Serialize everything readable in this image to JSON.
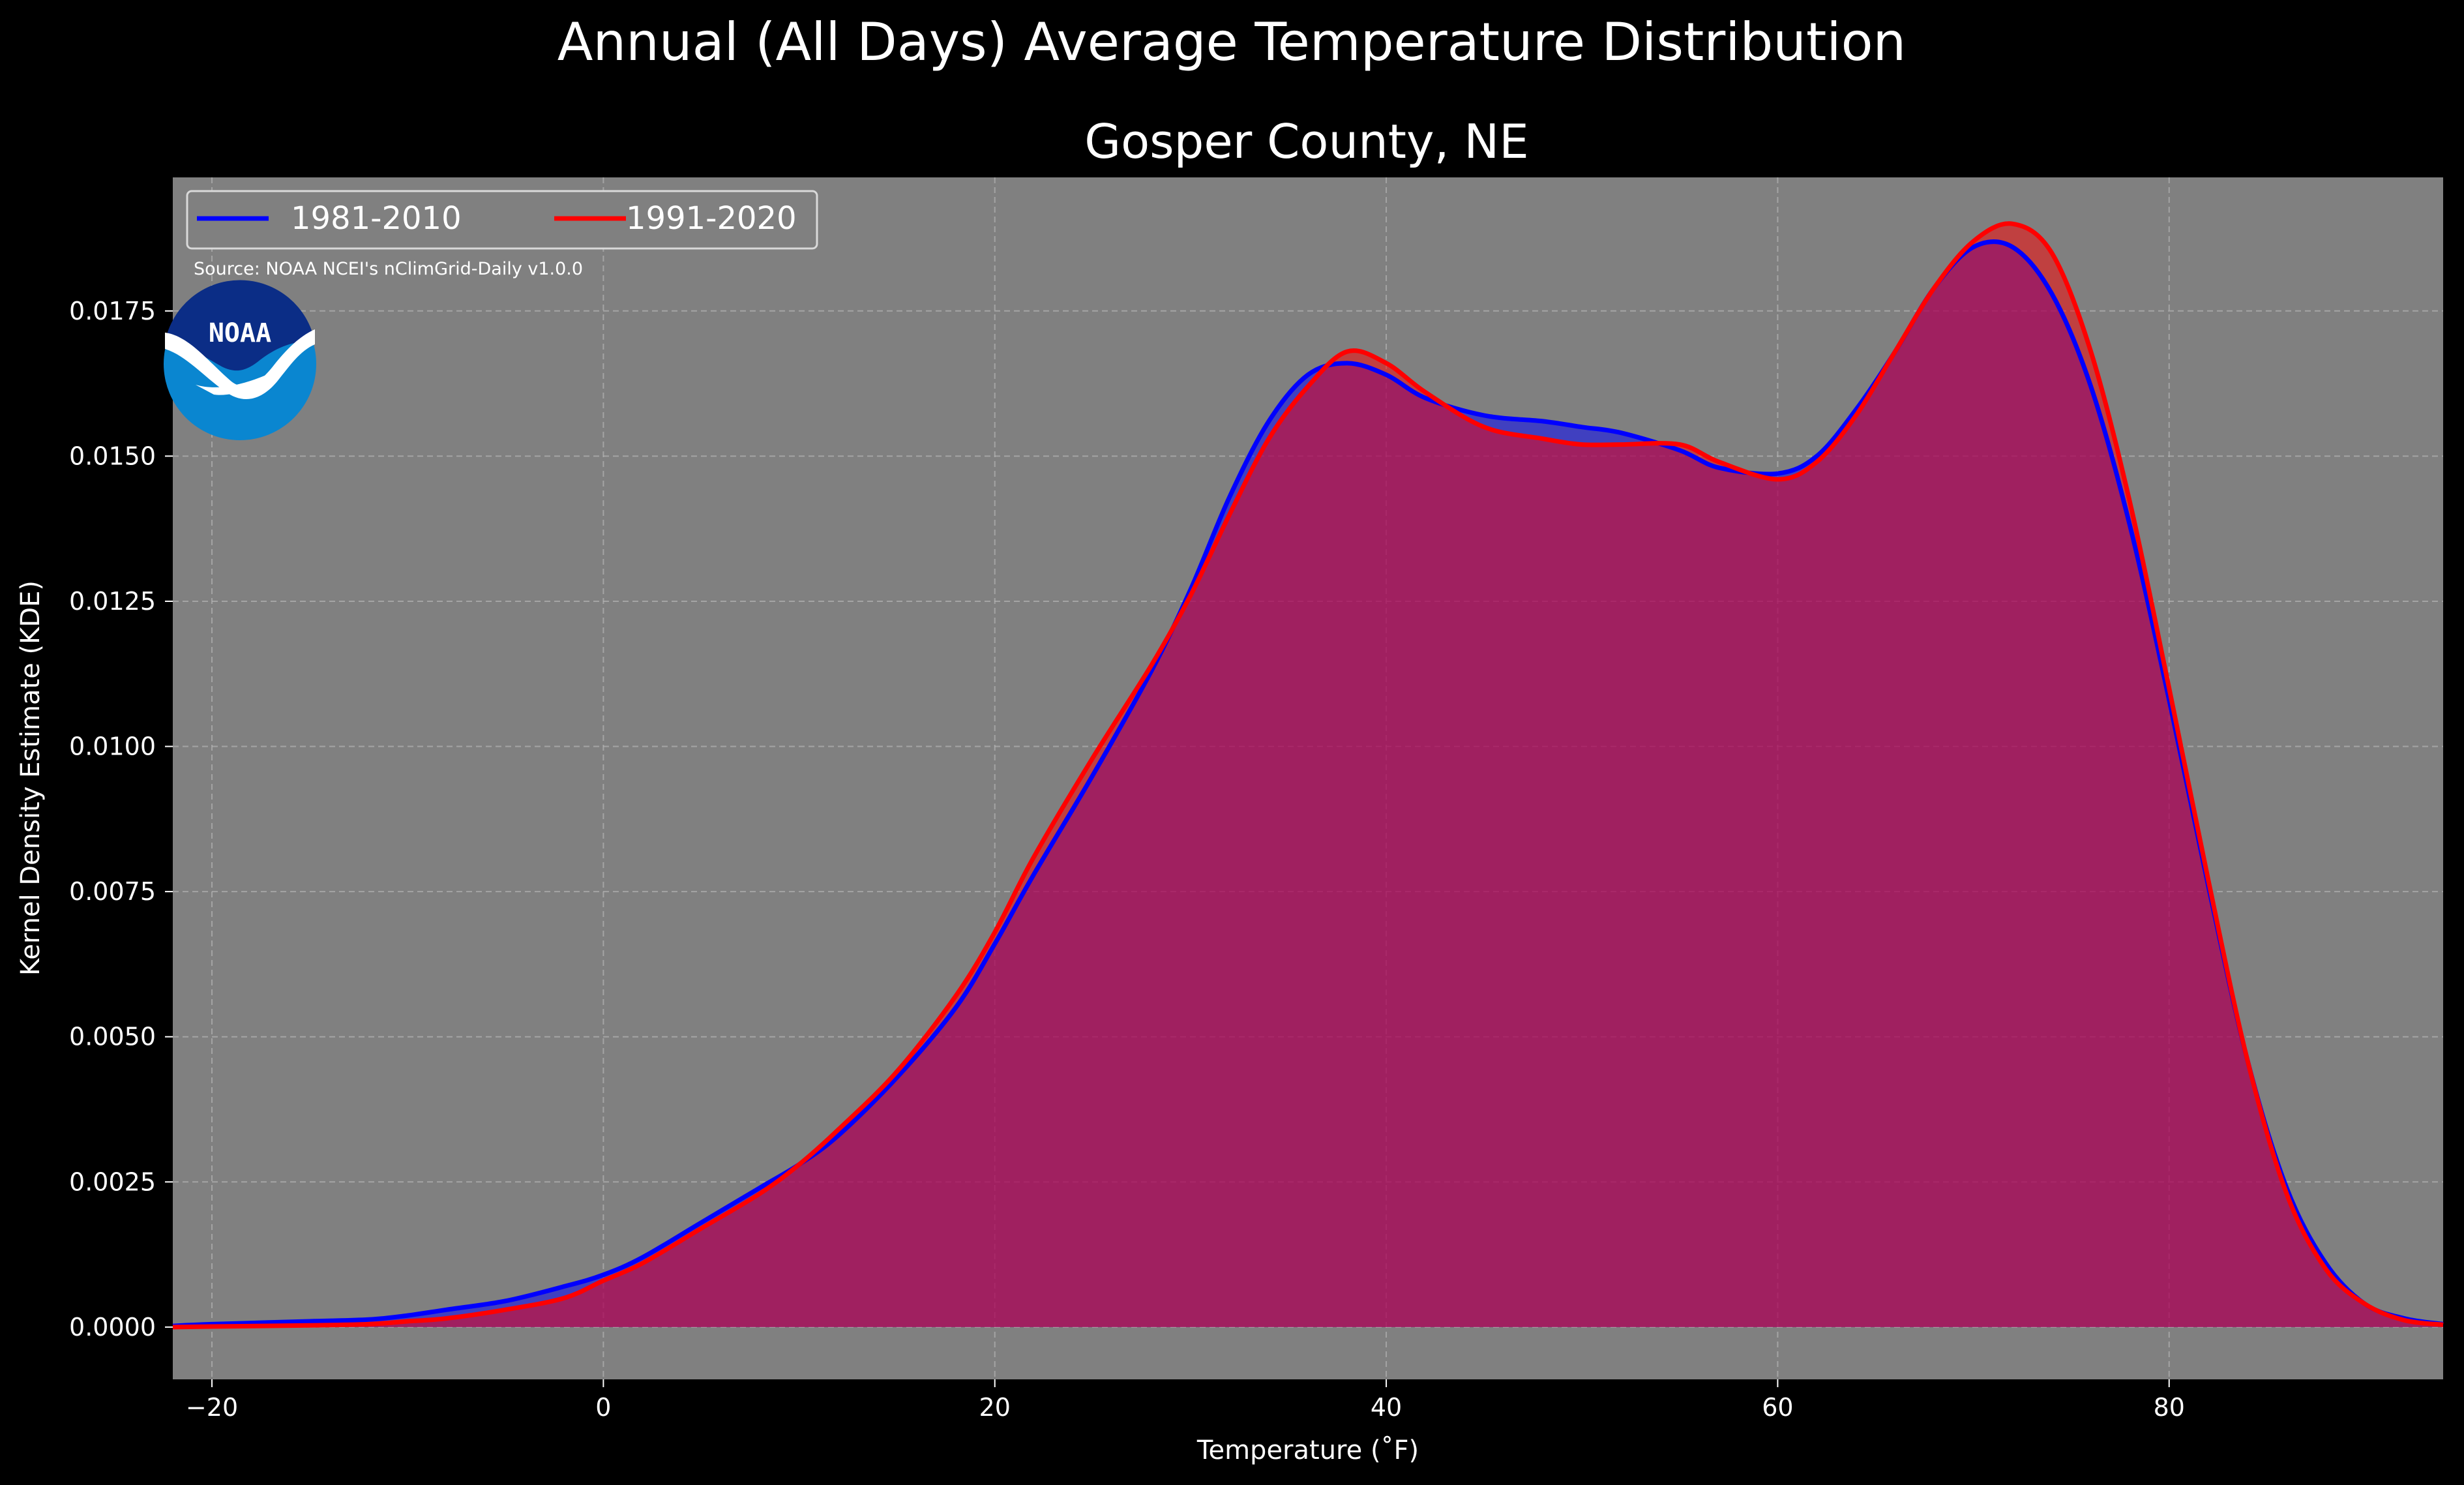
{
  "suptitle": "Annual (All Days) Average Temperature Distribution",
  "title": "Gosper County, NE",
  "source": "Source: NOAA NCEI's nClimGrid-Daily v1.0.0",
  "logo_text": "NOAA",
  "chart_data": {
    "type": "area",
    "xlabel": "Temperature (˚F)",
    "ylabel": "Kernel Density Estimate (KDE)",
    "xlim": [
      -22,
      94
    ],
    "ylim": [
      -0.0009,
      0.0198
    ],
    "x_ticks": [
      -20,
      0,
      20,
      40,
      60,
      80
    ],
    "y_ticks": [
      0.0,
      0.0025,
      0.005,
      0.0075,
      0.01,
      0.0125,
      0.015,
      0.0175
    ],
    "x_tick_labels": [
      "−20",
      "0",
      "20",
      "40",
      "60",
      "80"
    ],
    "y_tick_labels": [
      "0.0000",
      "0.0025",
      "0.0050",
      "0.0075",
      "0.0100",
      "0.0125",
      "0.0150",
      "0.0175"
    ],
    "grid": true,
    "legend_position": "top-left",
    "plot_background": "#808080",
    "series": [
      {
        "name": "1981-2010",
        "color": "#0000ff",
        "fill": "#0000ff",
        "points": [
          [
            -22,
            2e-05
          ],
          [
            -20,
            5e-05
          ],
          [
            -15,
            0.0001
          ],
          [
            -12,
            0.00013
          ],
          [
            -10,
            0.0002
          ],
          [
            -8,
            0.0003
          ],
          [
            -5,
            0.00045
          ],
          [
            -2,
            0.0007
          ],
          [
            0,
            0.0009
          ],
          [
            2,
            0.0012
          ],
          [
            5,
            0.0018
          ],
          [
            8,
            0.0024
          ],
          [
            10,
            0.0028
          ],
          [
            12,
            0.0033
          ],
          [
            15,
            0.0043
          ],
          [
            18,
            0.0055
          ],
          [
            20,
            0.0066
          ],
          [
            22,
            0.0078
          ],
          [
            25,
            0.0095
          ],
          [
            28,
            0.0113
          ],
          [
            30,
            0.0127
          ],
          [
            32,
            0.0143
          ],
          [
            34,
            0.0156
          ],
          [
            36,
            0.0164
          ],
          [
            38,
            0.0166
          ],
          [
            40,
            0.0164
          ],
          [
            42,
            0.016
          ],
          [
            45,
            0.0157
          ],
          [
            48,
            0.0156
          ],
          [
            50,
            0.0155
          ],
          [
            52,
            0.0154
          ],
          [
            55,
            0.0151
          ],
          [
            57,
            0.0148
          ],
          [
            60,
            0.0147
          ],
          [
            62,
            0.015
          ],
          [
            64,
            0.0158
          ],
          [
            66,
            0.0168
          ],
          [
            68,
            0.0179
          ],
          [
            70,
            0.0186
          ],
          [
            72,
            0.0186
          ],
          [
            74,
            0.0178
          ],
          [
            76,
            0.0162
          ],
          [
            78,
            0.0138
          ],
          [
            80,
            0.0108
          ],
          [
            82,
            0.0076
          ],
          [
            84,
            0.0046
          ],
          [
            86,
            0.0024
          ],
          [
            88,
            0.0011
          ],
          [
            90,
            0.0004
          ],
          [
            92,
            0.00015
          ],
          [
            94,
            5e-05
          ]
        ]
      },
      {
        "name": "1991-2020",
        "color": "#ff0000",
        "fill": "#ff0000",
        "points": [
          [
            -22,
            0.0
          ],
          [
            -20,
            1e-05
          ],
          [
            -15,
            3e-05
          ],
          [
            -12,
            5e-05
          ],
          [
            -10,
            0.0001
          ],
          [
            -8,
            0.00015
          ],
          [
            -5,
            0.0003
          ],
          [
            -2,
            0.0005
          ],
          [
            0,
            0.0008
          ],
          [
            2,
            0.0011
          ],
          [
            5,
            0.0017
          ],
          [
            8,
            0.0023
          ],
          [
            10,
            0.0028
          ],
          [
            12,
            0.0034
          ],
          [
            15,
            0.0044
          ],
          [
            18,
            0.0057
          ],
          [
            20,
            0.0068
          ],
          [
            22,
            0.0081
          ],
          [
            25,
            0.0098
          ],
          [
            28,
            0.0114
          ],
          [
            30,
            0.0126
          ],
          [
            32,
            0.014
          ],
          [
            34,
            0.0153
          ],
          [
            36,
            0.0162
          ],
          [
            38,
            0.0168
          ],
          [
            40,
            0.0166
          ],
          [
            42,
            0.0161
          ],
          [
            45,
            0.0155
          ],
          [
            48,
            0.0153
          ],
          [
            50,
            0.0152
          ],
          [
            52,
            0.0152
          ],
          [
            55,
            0.0152
          ],
          [
            57,
            0.0149
          ],
          [
            60,
            0.0146
          ],
          [
            62,
            0.0149
          ],
          [
            64,
            0.0157
          ],
          [
            66,
            0.0168
          ],
          [
            68,
            0.0179
          ],
          [
            70,
            0.0187
          ],
          [
            72,
            0.019
          ],
          [
            74,
            0.0185
          ],
          [
            76,
            0.0168
          ],
          [
            78,
            0.0142
          ],
          [
            80,
            0.011
          ],
          [
            82,
            0.0077
          ],
          [
            84,
            0.0046
          ],
          [
            86,
            0.0023
          ],
          [
            88,
            0.001
          ],
          [
            90,
            0.0004
          ],
          [
            92,
            0.00012
          ],
          [
            94,
            4e-05
          ]
        ]
      }
    ]
  }
}
